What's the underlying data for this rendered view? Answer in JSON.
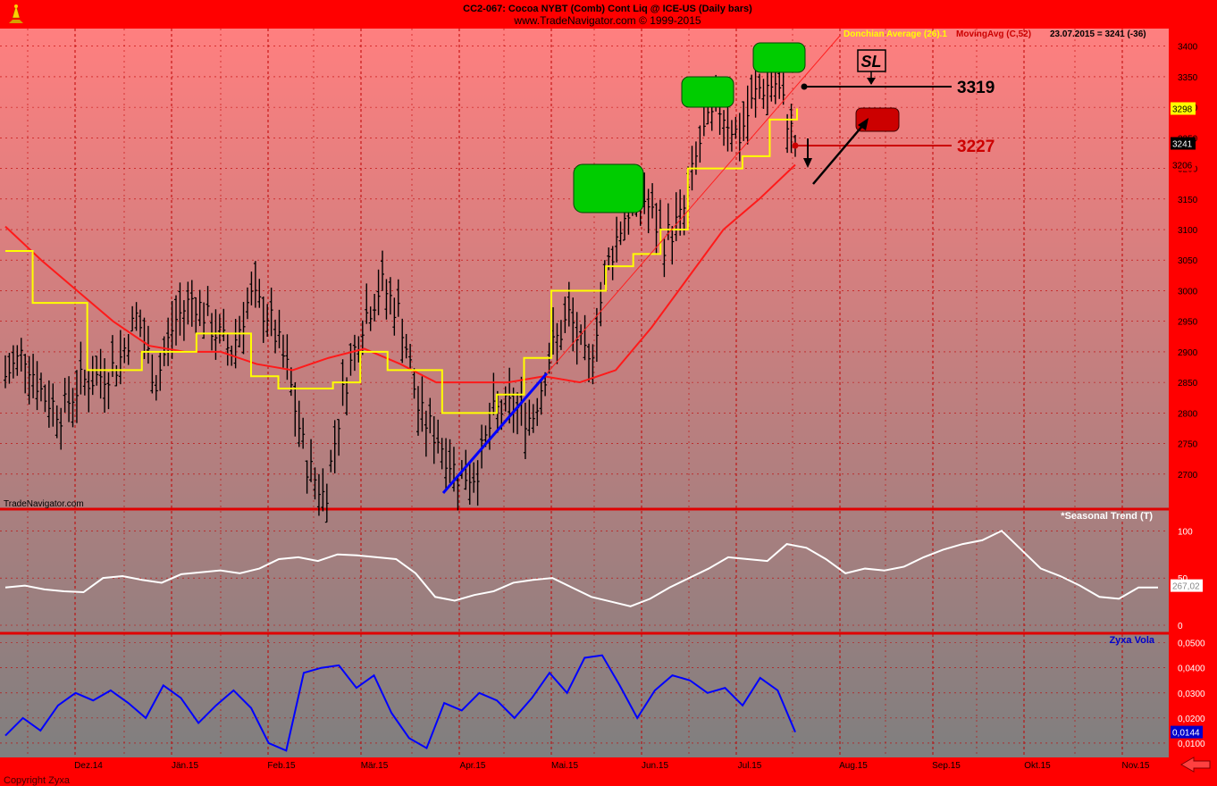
{
  "header": {
    "title": "CC2-067:  Cocoa NYBT (Comb) Cont Liq @ ICE-US  (Daily bars)",
    "source": "www.TradeNavigator.com © 1999-2015"
  },
  "legend": {
    "donchian": "Donchian Average (26).1",
    "ma": "MovingAvg (C,52)",
    "last": "23.07.2015 = 3241 (-36)"
  },
  "watermark": "TradeNavigator.com",
  "copyright": "Copyright Zyxa",
  "colors": {
    "background": "#ff0000",
    "panel_top": "#ff7f7f",
    "panel_bottom": "#7f7f7f",
    "price_bars": "#000000",
    "donchian": "#ffff00",
    "moving_avg": "#ff0000",
    "trendline": "#0000ff",
    "seasonal": "#ffffff",
    "vola": "#0000ff",
    "target_box": "#00cc00",
    "sl_box": "#cc0000"
  },
  "annotations": {
    "sl_label": "SL",
    "level_upper": "3319",
    "level_lower": "3227"
  },
  "chart_data": [
    {
      "type": "bar",
      "title": "CC2-067:  Cocoa NYBT (Comb) Cont Liq @ ICE-US  (Daily bars)",
      "x_labels": [
        "Dez.14",
        "Jän.15",
        "Feb.15",
        "Mär.15",
        "Apr.15",
        "Mai.15",
        "Jun.15",
        "Jul.15",
        "Aug.15",
        "Sep.15",
        "Okt.15",
        "Nov.15"
      ],
      "ylim": [
        2650,
        3420
      ],
      "y_ticks": [
        2700,
        2750,
        2800,
        2850,
        2900,
        2950,
        3000,
        3050,
        3100,
        3150,
        3200,
        3250,
        3300,
        3350,
        3400
      ],
      "right_tags": [
        {
          "text": "3298",
          "value": 3298,
          "color": "#ffff00"
        },
        {
          "text": "3241",
          "value": 3241,
          "color": "#000000"
        },
        {
          "text": "3206",
          "value": 3206,
          "color": "#ff0000"
        }
      ],
      "levels": [
        {
          "name": "3319",
          "value": 3319
        },
        {
          "name": "3227",
          "value": 3227
        }
      ],
      "close_weekly": [
        2860,
        2900,
        2830,
        2800,
        2850,
        2860,
        2880,
        2960,
        2850,
        2950,
        2990,
        2940,
        2900,
        2990,
        2960,
        2870,
        2720,
        2660,
        2840,
        2950,
        3010,
        2960,
        2800,
        2760,
        2700,
        2700,
        2800,
        2810,
        2790,
        2900,
        2960,
        2870,
        3040,
        3130,
        3150,
        3080,
        3120,
        3250,
        3300,
        3250,
        3330,
        3340,
        3241
      ],
      "donchian": [
        3065,
        2980,
        2980,
        2870,
        2870,
        2900,
        2900,
        2930,
        2930,
        2860,
        2840,
        2840,
        2850,
        2900,
        2870,
        2870,
        2800,
        2800,
        2830,
        2890,
        3000,
        3000,
        3040,
        3060,
        3100,
        3200,
        3200,
        3220,
        3280,
        3298
      ],
      "moving_avg": [
        3105,
        3050,
        3000,
        2950,
        2910,
        2900,
        2900,
        2880,
        2870,
        2890,
        2905,
        2880,
        2850,
        2850,
        2850,
        2860,
        2850,
        2870,
        2940,
        3020,
        3100,
        3150,
        3206
      ]
    },
    {
      "type": "line",
      "title": "*Seasonal Trend (T)",
      "ylim": [
        0,
        105
      ],
      "y_ticks": [
        0,
        50,
        100
      ],
      "last_tag": "267,02",
      "series": [
        {
          "values": [
            40,
            42,
            38,
            36,
            35,
            50,
            52,
            48,
            45,
            54,
            56,
            58,
            55,
            60,
            70,
            72,
            68,
            75,
            74,
            72,
            70,
            55,
            30,
            26,
            32,
            36,
            45,
            48,
            50,
            40,
            30,
            25,
            20,
            28,
            40,
            50,
            60,
            72,
            70,
            68,
            86,
            82,
            70,
            55,
            60,
            58,
            62,
            72,
            80,
            86,
            90,
            100,
            80,
            60,
            52,
            42,
            30,
            28,
            40,
            40
          ]
        }
      ]
    },
    {
      "type": "line",
      "title": "Zyxa Vola",
      "ylim": [
        0.005,
        0.052
      ],
      "y_ticks": [
        0.01,
        0.02,
        0.03,
        0.04,
        0.05
      ],
      "y_tick_labels": [
        "0,0100",
        "0,0200",
        "0,0300",
        "0,0400",
        "0,0500"
      ],
      "last_tag": "0,0144",
      "series": [
        {
          "values": [
            0.013,
            0.02,
            0.015,
            0.025,
            0.03,
            0.027,
            0.031,
            0.026,
            0.02,
            0.033,
            0.028,
            0.018,
            0.025,
            0.031,
            0.024,
            0.01,
            0.007,
            0.038,
            0.04,
            0.041,
            0.032,
            0.037,
            0.022,
            0.012,
            0.008,
            0.026,
            0.023,
            0.03,
            0.027,
            0.02,
            0.028,
            0.038,
            0.03,
            0.044,
            0.045,
            0.033,
            0.02,
            0.031,
            0.037,
            0.035,
            0.03,
            0.032,
            0.025,
            0.036,
            0.031,
            0.0144
          ]
        }
      ]
    }
  ]
}
